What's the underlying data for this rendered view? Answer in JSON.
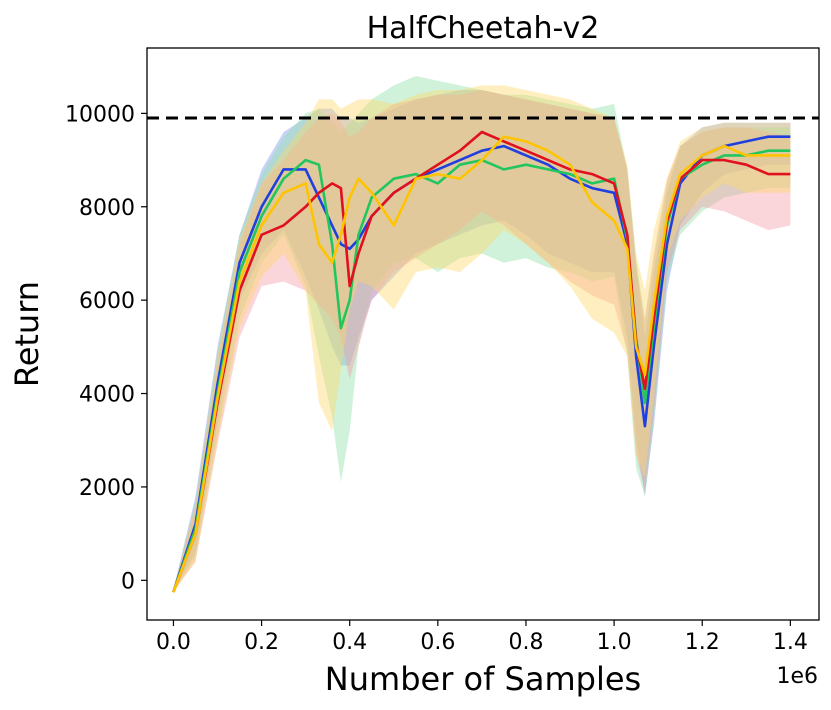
{
  "chart_data": {
    "type": "line",
    "title": "HalfCheetah-v2",
    "xlabel": "Number of Samples",
    "ylabel": "Return",
    "x_offset_label": "1e6",
    "xlim": [
      -0.06,
      1.465
    ],
    "ylim": [
      -850,
      11400
    ],
    "xticks": [
      0.0,
      0.2,
      0.4,
      0.6,
      0.8,
      1.0,
      1.2,
      1.4
    ],
    "xtick_labels": [
      "0.0",
      "0.2",
      "0.4",
      "0.6",
      "0.8",
      "1.0",
      "1.2",
      "1.4"
    ],
    "yticks": [
      0,
      2000,
      4000,
      6000,
      8000,
      10000
    ],
    "ytick_labels": [
      "0",
      "2000",
      "4000",
      "6000",
      "8000",
      "10000"
    ],
    "reference_line": {
      "y": 9900,
      "style": "dashed",
      "color": "#000000"
    },
    "x": [
      0.0,
      0.05,
      0.1,
      0.15,
      0.2,
      0.25,
      0.3,
      0.33,
      0.36,
      0.38,
      0.4,
      0.42,
      0.45,
      0.5,
      0.55,
      0.6,
      0.65,
      0.7,
      0.75,
      0.8,
      0.85,
      0.9,
      0.95,
      1.0,
      1.03,
      1.05,
      1.07,
      1.09,
      1.12,
      1.15,
      1.2,
      1.25,
      1.3,
      1.35,
      1.4
    ],
    "series": [
      {
        "name": "blue",
        "color": "#1f3fe0",
        "band_color": "#7f96f0",
        "values": [
          -250,
          1200,
          4200,
          6800,
          8000,
          8800,
          8800,
          8200,
          7600,
          7200,
          7100,
          7300,
          7800,
          8300,
          8600,
          8800,
          9000,
          9200,
          9300,
          9100,
          8900,
          8600,
          8400,
          8300,
          7200,
          4800,
          3300,
          5000,
          7200,
          8500,
          9100,
          9300,
          9400,
          9500,
          9500
        ],
        "lower": [
          -250,
          600,
          3400,
          6000,
          7000,
          7500,
          6500,
          5800,
          5000,
          4600,
          4600,
          5200,
          6000,
          6500,
          7000,
          7200,
          7400,
          7600,
          7700,
          7400,
          7000,
          6800,
          6600,
          6600,
          5200,
          3000,
          1800,
          3300,
          6200,
          7600,
          8300,
          8700,
          8800,
          8900,
          8900
        ],
        "upper": [
          -200,
          1800,
          5000,
          7400,
          8800,
          9600,
          9900,
          10100,
          10100,
          9900,
          9900,
          9800,
          9900,
          10100,
          10300,
          10400,
          10500,
          10500,
          10400,
          10300,
          10200,
          10100,
          10000,
          9900,
          8800,
          6800,
          5200,
          6600,
          8300,
          9300,
          9700,
          9800,
          9800,
          9800,
          9800
        ]
      },
      {
        "name": "green",
        "color": "#22c55e",
        "band_color": "#8fe0a8",
        "values": [
          -250,
          1100,
          4000,
          6600,
          7800,
          8600,
          9000,
          8900,
          7200,
          5400,
          6000,
          7400,
          8200,
          8600,
          8700,
          8500,
          8900,
          9000,
          8800,
          8900,
          8800,
          8700,
          8500,
          8600,
          7300,
          5200,
          3800,
          5400,
          7600,
          8600,
          8900,
          9100,
          9100,
          9200,
          9200
        ],
        "lower": [
          -250,
          500,
          3100,
          5600,
          6800,
          7400,
          6300,
          4800,
          3500,
          2100,
          3200,
          5000,
          6200,
          6800,
          6900,
          6600,
          6900,
          7000,
          6800,
          6900,
          6700,
          6600,
          6400,
          6500,
          4800,
          2400,
          1800,
          3400,
          6400,
          7400,
          7900,
          8200,
          8300,
          8400,
          8400
        ],
        "upper": [
          -200,
          1700,
          4900,
          7400,
          8700,
          9500,
          10000,
          10100,
          9800,
          9600,
          9800,
          10000,
          10300,
          10600,
          10800,
          10700,
          10600,
          10500,
          10400,
          10400,
          10300,
          10200,
          10100,
          10200,
          8800,
          6900,
          5600,
          6900,
          8500,
          9300,
          9600,
          9700,
          9700,
          9700,
          9700
        ]
      },
      {
        "name": "red",
        "color": "#e0101e",
        "band_color": "#f39ca4",
        "values": [
          -250,
          1000,
          3800,
          6200,
          7400,
          7600,
          8000,
          8300,
          8500,
          8400,
          6300,
          7000,
          7800,
          8300,
          8600,
          8900,
          9200,
          9600,
          9400,
          9200,
          9000,
          8800,
          8700,
          8500,
          7400,
          5100,
          4100,
          5600,
          7700,
          8600,
          9000,
          9000,
          8900,
          8700,
          8700
        ],
        "lower": [
          -250,
          400,
          2900,
          5200,
          6300,
          6400,
          6200,
          5900,
          5600,
          5200,
          4300,
          5000,
          6000,
          6600,
          6900,
          7200,
          7500,
          7900,
          7600,
          7200,
          6800,
          6400,
          6100,
          5900,
          4900,
          2700,
          1900,
          3600,
          6600,
          7500,
          8000,
          7900,
          7700,
          7500,
          7600
        ],
        "upper": [
          -200,
          1600,
          4700,
          7200,
          8500,
          9000,
          9600,
          9900,
          10000,
          9800,
          9500,
          9600,
          9900,
          10200,
          10300,
          10400,
          10400,
          10500,
          10400,
          10300,
          10200,
          10100,
          10000,
          9900,
          8800,
          6700,
          5600,
          7000,
          8600,
          9300,
          9600,
          9700,
          9700,
          9600,
          9500
        ]
      },
      {
        "name": "yellow",
        "color": "#ffc400",
        "band_color": "#ffd86a",
        "values": [
          -250,
          1000,
          3900,
          6400,
          7600,
          8300,
          8500,
          7200,
          6800,
          7400,
          8200,
          8600,
          8300,
          7600,
          8600,
          8700,
          8600,
          9000,
          9500,
          9400,
          9200,
          8900,
          8100,
          7700,
          7100,
          5000,
          4400,
          5900,
          7800,
          8700,
          9100,
          9300,
          9100,
          9100,
          9100
        ],
        "lower": [
          -250,
          400,
          3000,
          5400,
          6500,
          7000,
          6200,
          3800,
          3200,
          4500,
          5800,
          6400,
          6300,
          5800,
          6600,
          6700,
          6600,
          7000,
          7500,
          7200,
          6800,
          6300,
          5600,
          5300,
          4800,
          2700,
          2200,
          3900,
          6900,
          7700,
          8200,
          8500,
          8300,
          8300,
          8300
        ],
        "upper": [
          -200,
          1600,
          4800,
          7300,
          8500,
          9200,
          9800,
          10300,
          10300,
          10100,
          10200,
          10300,
          10300,
          10200,
          10400,
          10500,
          10500,
          10600,
          10600,
          10500,
          10400,
          10300,
          10100,
          9900,
          8900,
          7000,
          6200,
          7500,
          8600,
          9400,
          9700,
          9800,
          9800,
          9800,
          9800
        ]
      }
    ],
    "grid": false,
    "legend": "none"
  }
}
